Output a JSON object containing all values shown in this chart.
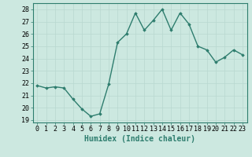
{
  "x": [
    0,
    1,
    2,
    3,
    4,
    5,
    6,
    7,
    8,
    9,
    10,
    11,
    12,
    13,
    14,
    15,
    16,
    17,
    18,
    19,
    20,
    21,
    22,
    23
  ],
  "y": [
    21.8,
    21.6,
    21.7,
    21.6,
    20.7,
    19.9,
    19.3,
    19.5,
    21.9,
    25.3,
    26.0,
    27.7,
    26.3,
    27.1,
    28.0,
    26.3,
    27.7,
    26.8,
    25.0,
    24.7,
    23.7,
    24.1,
    24.7,
    24.3
  ],
  "line_color": "#2e7d6e",
  "marker": "D",
  "markersize": 1.8,
  "linewidth": 1.0,
  "xlabel": "Humidex (Indice chaleur)",
  "ylabel_ticks": [
    19,
    20,
    21,
    22,
    23,
    24,
    25,
    26,
    27,
    28
  ],
  "ylim": [
    18.8,
    28.5
  ],
  "xlim": [
    -0.5,
    23.5
  ],
  "bg_color": "#cce8e0",
  "grid_color": "#b8d8d0",
  "label_color": "#2e7d6e",
  "xlabel_fontsize": 7,
  "tick_fontsize": 6
}
